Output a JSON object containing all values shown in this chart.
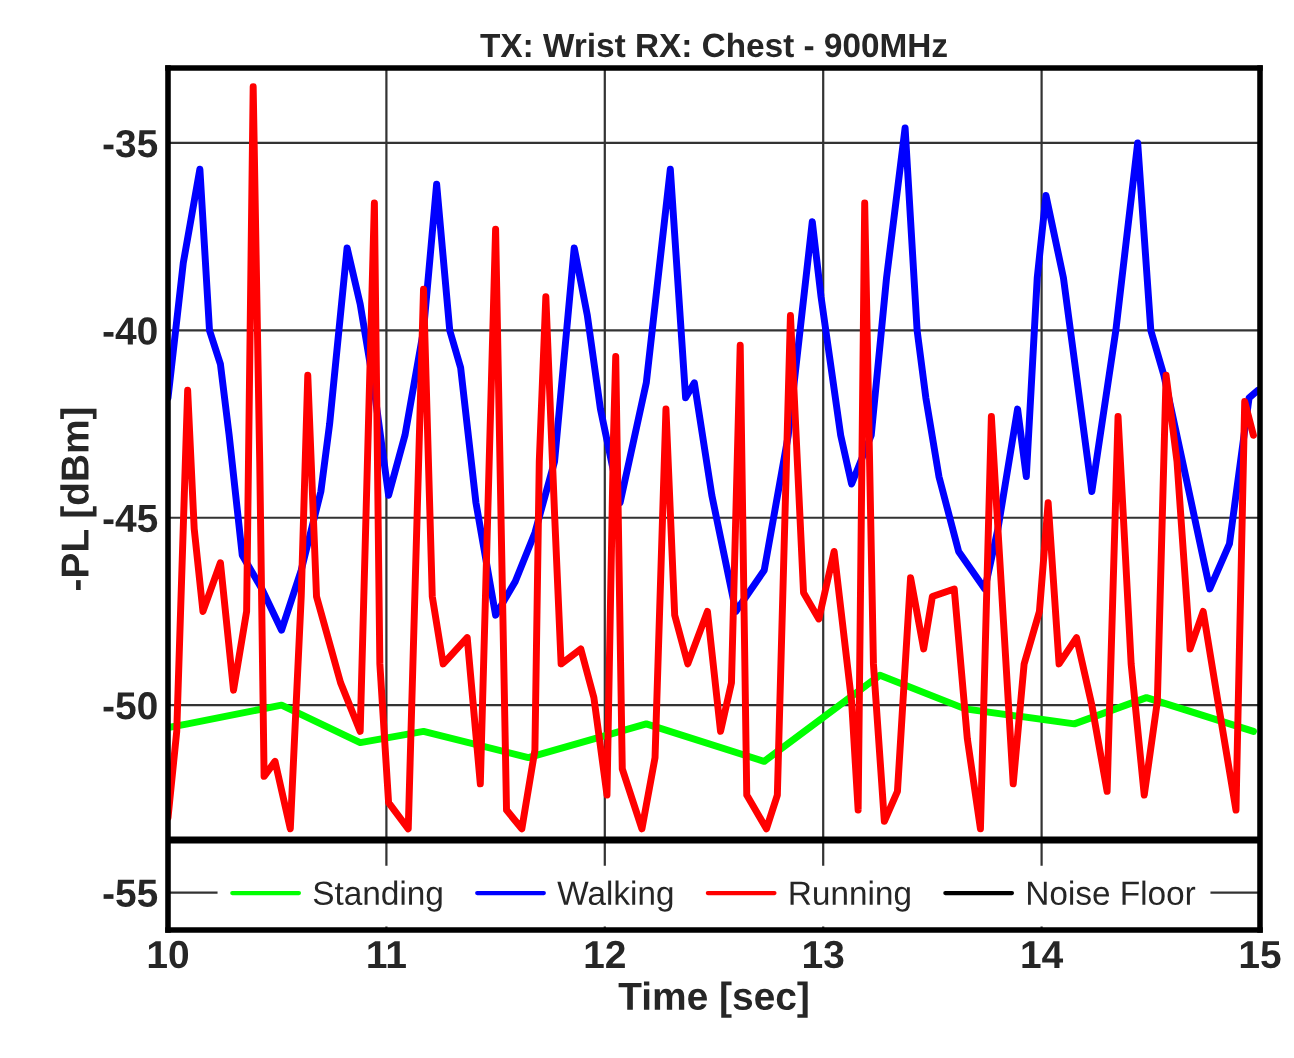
{
  "chart_data": {
    "type": "line",
    "title": "TX: Wrist RX: Chest - 900MHz",
    "xlabel": "Time [sec]",
    "ylabel": "-PL [dBm]",
    "xlim": [
      10,
      15
    ],
    "xticks": [
      10,
      11,
      12,
      13,
      14,
      15
    ],
    "ylim": [
      -56,
      -33
    ],
    "yticks": [
      -55,
      -50,
      -45,
      -40,
      -35
    ],
    "grid": true,
    "legend": "bottom",
    "series": [
      {
        "name": "Standing",
        "color": "#00ff00",
        "x": [
          10.0,
          10.09,
          10.52,
          10.88,
          11.17,
          11.65,
          12.19,
          12.73,
          13.26,
          13.65,
          14.15,
          14.48,
          14.97
        ],
        "values": [
          -50.6,
          -50.5,
          -50.0,
          -51.0,
          -50.7,
          -51.4,
          -50.5,
          -51.5,
          -49.2,
          -50.1,
          -50.5,
          -49.8,
          -50.7
        ]
      },
      {
        "name": "Walking",
        "color": "#0000ff",
        "x": [
          10.0,
          10.07,
          10.146,
          10.19,
          10.24,
          10.28,
          10.34,
          10.43,
          10.52,
          10.61,
          10.7,
          10.74,
          10.82,
          10.88,
          10.94,
          11.01,
          11.085,
          11.17,
          11.23,
          11.29,
          11.34,
          11.41,
          11.5,
          11.59,
          11.68,
          11.77,
          11.86,
          11.92,
          11.98,
          12.07,
          12.19,
          12.3,
          12.37,
          12.41,
          12.49,
          12.6,
          12.73,
          12.84,
          12.95,
          12.99,
          13.08,
          13.13,
          13.22,
          13.29,
          13.375,
          13.43,
          13.47,
          13.53,
          13.62,
          13.74,
          13.8,
          13.89,
          13.93,
          13.98,
          14.02,
          14.1,
          14.23,
          14.34,
          14.44,
          14.5,
          14.56,
          14.66,
          14.77,
          14.86,
          14.95,
          14.99
        ],
        "values": [
          -41.8,
          -38.2,
          -35.7,
          -40.0,
          -40.9,
          -42.8,
          -46.0,
          -46.9,
          -48.0,
          -46.4,
          -44.3,
          -42.5,
          -37.8,
          -39.3,
          -41.4,
          -44.4,
          -42.8,
          -40.0,
          -36.1,
          -40.0,
          -41.0,
          -44.6,
          -47.6,
          -46.7,
          -45.4,
          -43.5,
          -37.8,
          -39.6,
          -42.1,
          -44.6,
          -41.4,
          -35.7,
          -41.8,
          -41.4,
          -44.4,
          -47.5,
          -46.4,
          -42.8,
          -37.1,
          -39.1,
          -42.8,
          -44.1,
          -42.8,
          -38.6,
          -34.6,
          -40.0,
          -41.8,
          -43.9,
          -45.9,
          -46.9,
          -45.3,
          -42.1,
          -43.9,
          -38.6,
          -36.4,
          -38.6,
          -44.3,
          -40.0,
          -35.0,
          -40.0,
          -41.2,
          -43.9,
          -46.9,
          -45.7,
          -41.8,
          -41.6
        ]
      },
      {
        "name": "Running",
        "color": "#ff0000",
        "x": [
          10.0,
          10.04,
          10.09,
          10.12,
          10.16,
          10.24,
          10.3,
          10.36,
          10.39,
          10.42,
          10.44,
          10.49,
          10.56,
          10.61,
          10.64,
          10.68,
          10.79,
          10.88,
          10.945,
          10.97,
          11.01,
          11.1,
          11.17,
          11.21,
          11.26,
          11.37,
          11.43,
          11.5,
          11.55,
          11.62,
          11.68,
          11.7,
          11.73,
          11.77,
          11.8,
          11.89,
          11.95,
          12.01,
          12.04,
          12.05,
          12.08,
          12.17,
          12.23,
          12.28,
          12.32,
          12.38,
          12.47,
          12.53,
          12.58,
          12.62,
          12.65,
          12.74,
          12.79,
          12.85,
          12.91,
          12.98,
          13.05,
          13.13,
          13.16,
          13.19,
          13.23,
          13.28,
          13.34,
          13.4,
          13.46,
          13.5,
          13.6,
          13.66,
          13.72,
          13.77,
          13.8,
          13.87,
          13.92,
          13.99,
          14.03,
          14.08,
          14.16,
          14.23,
          14.3,
          14.35,
          14.41,
          14.47,
          14.53,
          14.57,
          14.62,
          14.68,
          14.74,
          14.81,
          14.89,
          14.93,
          14.97
        ],
        "values": [
          -53.0,
          -50.7,
          -41.6,
          -45.3,
          -47.5,
          -46.2,
          -49.6,
          -47.5,
          -33.5,
          -43.5,
          -51.9,
          -51.5,
          -53.3,
          -47.1,
          -41.2,
          -47.1,
          -49.4,
          -50.7,
          -36.6,
          -48.9,
          -52.6,
          -53.3,
          -38.9,
          -47.1,
          -48.9,
          -48.2,
          -52.1,
          -37.3,
          -52.8,
          -53.3,
          -51.2,
          -43.5,
          -39.1,
          -44.9,
          -48.9,
          -48.5,
          -49.8,
          -52.4,
          -42.8,
          -40.7,
          -51.7,
          -53.3,
          -51.4,
          -42.1,
          -47.6,
          -48.9,
          -47.5,
          -50.7,
          -49.4,
          -40.4,
          -52.4,
          -53.3,
          -52.4,
          -39.6,
          -47.0,
          -47.7,
          -45.9,
          -49.9,
          -52.8,
          -36.6,
          -48.9,
          -53.1,
          -52.3,
          -46.6,
          -48.5,
          -47.1,
          -46.9,
          -50.9,
          -53.3,
          -42.3,
          -45.3,
          -52.1,
          -48.9,
          -47.5,
          -44.6,
          -48.9,
          -48.2,
          -50.0,
          -52.3,
          -42.3,
          -48.9,
          -52.4,
          -49.9,
          -41.2,
          -43.5,
          -48.5,
          -47.5,
          -50.0,
          -52.8,
          -41.9,
          -42.8
        ]
      },
      {
        "name": "Noise Floor",
        "color": "#000000",
        "x": [
          10.0,
          10.5,
          11.0,
          11.5,
          12.0,
          12.5,
          13.0,
          13.5,
          14.0,
          14.5,
          15.0
        ],
        "values": [
          -53.6,
          -53.6,
          -53.6,
          -53.6,
          -53.6,
          -53.6,
          -53.6,
          -53.6,
          -53.6,
          -53.6,
          -53.6
        ]
      }
    ]
  }
}
